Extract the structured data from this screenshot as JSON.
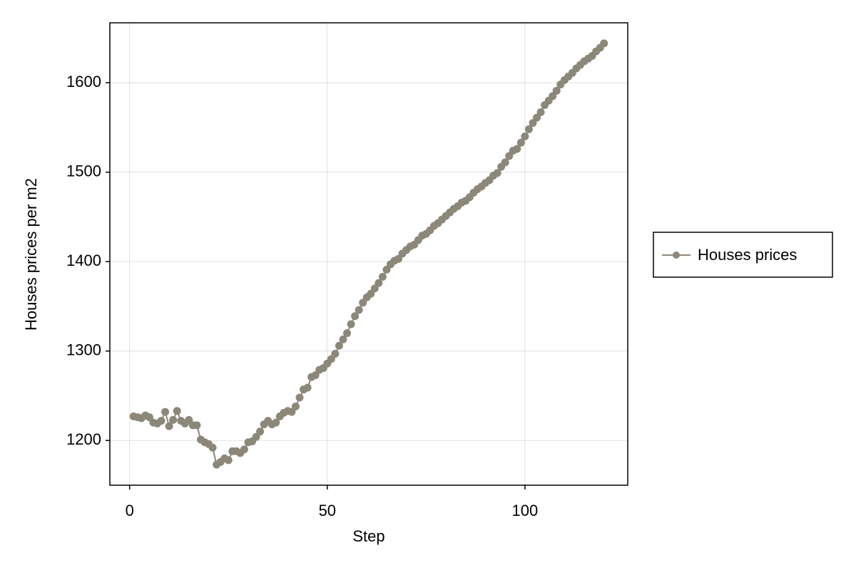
{
  "chart_data": {
    "type": "line",
    "x_label": "Step",
    "y_label": "Houses prices per m2",
    "x": [
      1,
      2,
      3,
      4,
      5,
      6,
      7,
      8,
      9,
      10,
      11,
      12,
      13,
      14,
      15,
      16,
      17,
      18,
      19,
      20,
      21,
      22,
      23,
      24,
      25,
      26,
      27,
      28,
      29,
      30,
      31,
      32,
      33,
      34,
      35,
      36,
      37,
      38,
      39,
      40,
      41,
      42,
      43,
      44,
      45,
      46,
      47,
      48,
      49,
      50,
      51,
      52,
      53,
      54,
      55,
      56,
      57,
      58,
      59,
      60,
      61,
      62,
      63,
      64,
      65,
      66,
      67,
      68,
      69,
      70,
      71,
      72,
      73,
      74,
      75,
      76,
      77,
      78,
      79,
      80,
      81,
      82,
      83,
      84,
      85,
      86,
      87,
      88,
      89,
      90,
      91,
      92,
      93,
      94,
      95,
      96,
      97,
      98,
      99,
      100,
      101,
      102,
      103,
      104,
      105,
      106,
      107,
      108,
      109,
      110,
      111,
      112,
      113,
      114,
      115,
      116,
      117,
      118,
      119,
      120
    ],
    "series": [
      {
        "name": "Houses prices",
        "color": "#8b887a",
        "values": [
          1227,
          1226,
          1225,
          1228,
          1226,
          1220,
          1219,
          1222,
          1232,
          1216,
          1223,
          1233,
          1222,
          1219,
          1223,
          1217,
          1217,
          1201,
          1198,
          1196,
          1192,
          1173,
          1176,
          1180,
          1178,
          1188,
          1188,
          1186,
          1190,
          1198,
          1199,
          1204,
          1210,
          1218,
          1222,
          1218,
          1220,
          1227,
          1231,
          1233,
          1232,
          1238,
          1248,
          1257,
          1259,
          1271,
          1273,
          1279,
          1281,
          1286,
          1291,
          1297,
          1306,
          1313,
          1320,
          1330,
          1339,
          1346,
          1354,
          1360,
          1364,
          1370,
          1376,
          1383,
          1391,
          1397,
          1401,
          1403,
          1409,
          1413,
          1417,
          1419,
          1424,
          1429,
          1431,
          1435,
          1440,
          1443,
          1447,
          1451,
          1455,
          1459,
          1462,
          1466,
          1468,
          1472,
          1477,
          1481,
          1484,
          1488,
          1491,
          1496,
          1499,
          1506,
          1511,
          1518,
          1524,
          1526,
          1533,
          1540,
          1548,
          1555,
          1561,
          1567,
          1575,
          1580,
          1585,
          1591,
          1598,
          1603,
          1607,
          1611,
          1616,
          1620,
          1624,
          1627,
          1630,
          1635,
          1639,
          1644
        ]
      }
    ],
    "xlim": [
      -5,
      126
    ],
    "ylim": [
      1150,
      1667
    ],
    "xticks": [
      0,
      50,
      100
    ],
    "yticks": [
      1200,
      1300,
      1400,
      1500,
      1600
    ],
    "grid": true,
    "legend": "right"
  }
}
